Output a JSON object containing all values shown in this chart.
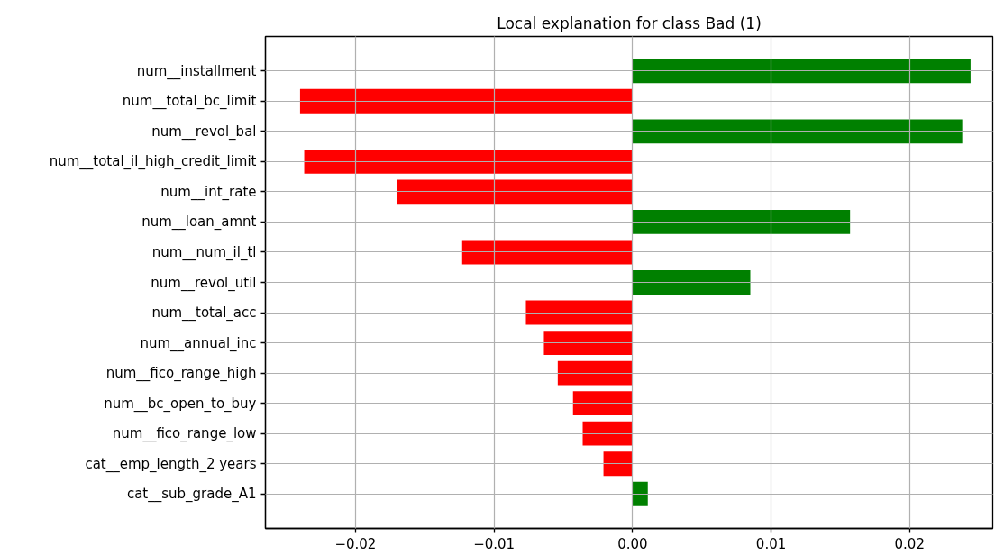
{
  "chart_data": {
    "type": "bar",
    "orientation": "horizontal",
    "title": "Local explanation for class Bad (1)",
    "categories": [
      "num__installment",
      "num__total_bc_limit",
      "num__revol_bal",
      "num__total_il_high_credit_limit",
      "num__int_rate",
      "num__loan_amnt",
      "num__num_il_tl",
      "num__revol_util",
      "num__total_acc",
      "num__annual_inc",
      "num__fico_range_high",
      "num__bc_open_to_buy",
      "num__fico_range_low",
      "cat__emp_length_2 years",
      "cat__sub_grade_A1"
    ],
    "values": [
      0.0244,
      -0.024,
      0.0238,
      -0.0237,
      -0.017,
      0.0157,
      -0.0123,
      0.0085,
      -0.0077,
      -0.0064,
      -0.0054,
      -0.0043,
      -0.0036,
      -0.0021,
      0.0011
    ],
    "colors": [
      "#008000",
      "#ff0000",
      "#008000",
      "#ff0000",
      "#ff0000",
      "#008000",
      "#ff0000",
      "#008000",
      "#ff0000",
      "#ff0000",
      "#ff0000",
      "#ff0000",
      "#ff0000",
      "#ff0000",
      "#008000"
    ],
    "xlim": [
      -0.0265,
      0.026
    ],
    "xticks": [
      {
        "value": -0.02,
        "label": "−0.02"
      },
      {
        "value": -0.01,
        "label": "−0.01"
      },
      {
        "value": 0.0,
        "label": "0.00"
      },
      {
        "value": 0.01,
        "label": "0.01"
      },
      {
        "value": 0.02,
        "label": "0.02"
      }
    ],
    "grid": true
  }
}
